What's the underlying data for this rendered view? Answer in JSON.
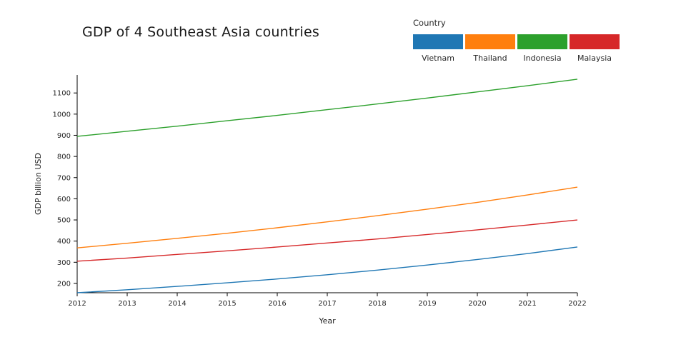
{
  "title": "GDP of 4 Southeast Asia countries",
  "legend": {
    "title": "Country",
    "items": [
      {
        "label": "Vietnam",
        "color": "#1f77b4"
      },
      {
        "label": "Thailand",
        "color": "#ff7f0e"
      },
      {
        "label": "Indonesia",
        "color": "#2ca02c"
      },
      {
        "label": "Malaysia",
        "color": "#d62728"
      }
    ]
  },
  "chart_data": {
    "type": "line",
    "title": "GDP of 4 Southeast Asia countries",
    "xlabel": "Year",
    "ylabel": "GDP billion USD",
    "x": [
      2012,
      2013,
      2014,
      2015,
      2016,
      2017,
      2018,
      2019,
      2020,
      2021,
      2022
    ],
    "xlim": [
      2012,
      2022
    ],
    "ylim": [
      156,
      1185
    ],
    "yticks": [
      200,
      300,
      400,
      500,
      600,
      700,
      800,
      900,
      1000,
      1100
    ],
    "grid": false,
    "legend_position": "top-right",
    "series": [
      {
        "name": "Vietnam",
        "color": "#1f77b4",
        "values": [
          156,
          170,
          186,
          203,
          221,
          241,
          263,
          287,
          313,
          341,
          372
        ]
      },
      {
        "name": "Thailand",
        "color": "#ff7f0e",
        "values": [
          368,
          390,
          413,
          437,
          463,
          491,
          520,
          551,
          583,
          618,
          655
        ]
      },
      {
        "name": "Indonesia",
        "color": "#2ca02c",
        "values": [
          895,
          919,
          943,
          969,
          994,
          1021,
          1048,
          1076,
          1105,
          1134,
          1165
        ]
      },
      {
        "name": "Malaysia",
        "color": "#d62728",
        "values": [
          305,
          320,
          337,
          354,
          372,
          391,
          410,
          431,
          453,
          476,
          500
        ]
      }
    ],
    "axis_color": "#000000",
    "tick_label_color": "#262626"
  }
}
